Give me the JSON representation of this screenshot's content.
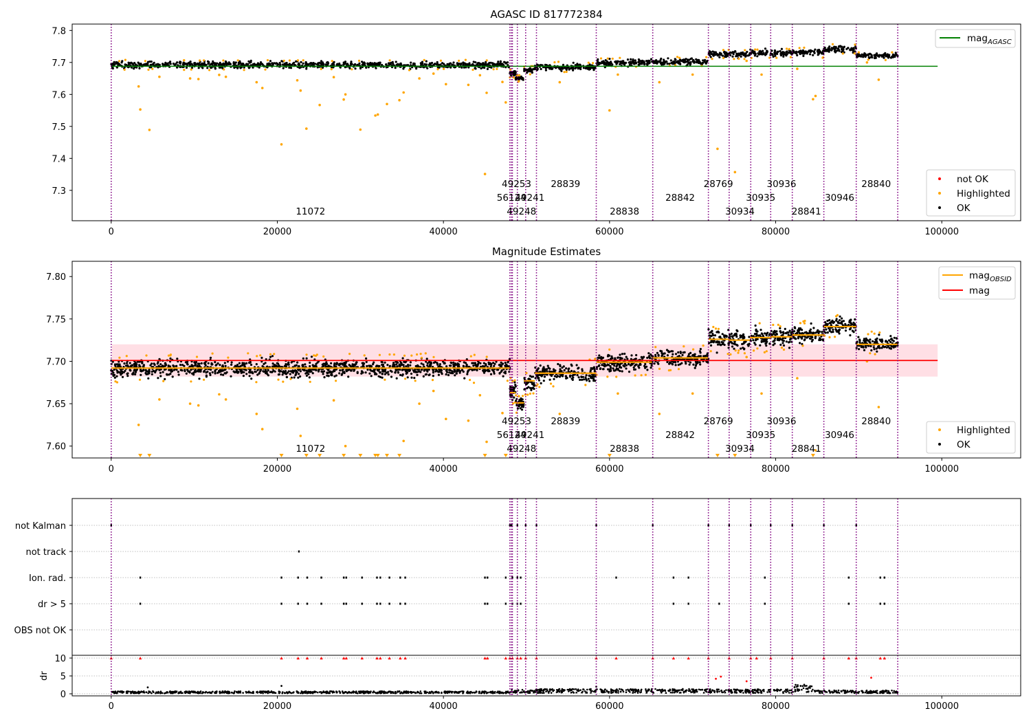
{
  "chart_data": [
    {
      "type": "scatter",
      "title": "AGASC ID 817772384",
      "xlabel": "",
      "ylabel": "",
      "xlim": [
        -4700,
        109500
      ],
      "ylim": [
        7.205,
        7.82
      ],
      "xticks": [
        0,
        20000,
        40000,
        60000,
        80000,
        100000
      ],
      "xtick_labels": [
        "0",
        "20000",
        "40000",
        "60000",
        "80000",
        "100000"
      ],
      "yticks": [
        7.3,
        7.4,
        7.5,
        7.6,
        7.7,
        7.8
      ],
      "ytick_labels": [
        "7.3",
        "7.4",
        "7.5",
        "7.6",
        "7.7",
        "7.8"
      ],
      "legends": [
        {
          "position": "upper right",
          "items": [
            {
              "label": "mag",
              "sub": "AGASC",
              "marker": "line",
              "color": "#008000"
            }
          ]
        },
        {
          "position": "lower right",
          "items": [
            {
              "label": "not OK",
              "marker": "dot",
              "color": "#ff0000"
            },
            {
              "label": "Highlighted",
              "marker": "dot",
              "color": "#ffa500"
            },
            {
              "label": "OK",
              "marker": "dot",
              "color": "#000000"
            }
          ]
        }
      ],
      "mag_agasc": 7.688,
      "series": [
        {
          "name": "OK",
          "color": "#000000",
          "segments": [
            {
              "x0": 0,
              "x1": 48000,
              "center": 7.692,
              "spread": 0.022
            },
            {
              "x0": 48000,
              "x1": 48700,
              "center": 7.665,
              "spread": 0.02
            },
            {
              "x0": 48700,
              "x1": 49700,
              "center": 7.65,
              "spread": 0.015
            },
            {
              "x0": 49700,
              "x1": 51000,
              "center": 7.675,
              "spread": 0.018
            },
            {
              "x0": 51000,
              "x1": 58400,
              "center": 7.686,
              "spread": 0.022
            },
            {
              "x0": 58400,
              "x1": 65100,
              "center": 7.699,
              "spread": 0.022
            },
            {
              "x0": 65100,
              "x1": 71900,
              "center": 7.703,
              "spread": 0.02
            },
            {
              "x0": 71900,
              "x1": 74400,
              "center": 7.726,
              "spread": 0.022
            },
            {
              "x0": 74400,
              "x1": 76900,
              "center": 7.725,
              "spread": 0.022
            },
            {
              "x0": 76900,
              "x1": 79400,
              "center": 7.728,
              "spread": 0.022
            },
            {
              "x0": 79400,
              "x1": 82000,
              "center": 7.729,
              "spread": 0.022
            },
            {
              "x0": 82000,
              "x1": 85800,
              "center": 7.731,
              "spread": 0.022
            },
            {
              "x0": 85800,
              "x1": 89700,
              "center": 7.742,
              "spread": 0.02
            },
            {
              "x0": 89700,
              "x1": 94700,
              "center": 7.721,
              "spread": 0.018
            }
          ]
        },
        {
          "name": "Highlighted",
          "color": "#ffa500",
          "points": [
            [
              3300,
              7.625
            ],
            [
              3500,
              7.553
            ],
            [
              4600,
              7.489
            ],
            [
              5800,
              7.655
            ],
            [
              9500,
              7.65
            ],
            [
              10500,
              7.648
            ],
            [
              13000,
              7.661
            ],
            [
              13800,
              7.655
            ],
            [
              17500,
              7.638
            ],
            [
              18200,
              7.62
            ],
            [
              20500,
              7.444
            ],
            [
              22400,
              7.644
            ],
            [
              22800,
              7.612
            ],
            [
              23500,
              7.493
            ],
            [
              25100,
              7.567
            ],
            [
              26800,
              7.654
            ],
            [
              28000,
              7.584
            ],
            [
              28200,
              7.6
            ],
            [
              30000,
              7.49
            ],
            [
              31800,
              7.534
            ],
            [
              32100,
              7.537
            ],
            [
              33200,
              7.57
            ],
            [
              34700,
              7.582
            ],
            [
              35200,
              7.606
            ],
            [
              37100,
              7.65
            ],
            [
              38800,
              7.665
            ],
            [
              40300,
              7.632
            ],
            [
              43000,
              7.63
            ],
            [
              44400,
              7.66
            ],
            [
              45000,
              7.351
            ],
            [
              45200,
              7.605
            ],
            [
              47100,
              7.639
            ],
            [
              47500,
              7.575
            ],
            [
              54000,
              7.638
            ],
            [
              60000,
              7.55
            ],
            [
              61000,
              7.662
            ],
            [
              66000,
              7.638
            ],
            [
              70000,
              7.662
            ],
            [
              73000,
              7.43
            ],
            [
              75100,
              7.357
            ],
            [
              76500,
              7.705
            ],
            [
              78300,
              7.662
            ],
            [
              82600,
              7.68
            ],
            [
              84500,
              7.585
            ],
            [
              84800,
              7.595
            ],
            [
              91000,
              7.7
            ],
            [
              92400,
              7.646
            ]
          ]
        }
      ],
      "obsid_boundaries": [
        0,
        48000,
        48200,
        48300,
        48900,
        49900,
        51200,
        58400,
        65200,
        71900,
        74400,
        77000,
        79400,
        82000,
        85800,
        89700,
        94700
      ],
      "obsid_labels": [
        {
          "text": "11072",
          "x": 24000,
          "row": 3
        },
        {
          "text": "49253",
          "x": 48800,
          "row": 1
        },
        {
          "text": "56124",
          "x": 48200,
          "row": 2
        },
        {
          "text": "49241",
          "x": 50400,
          "row": 2
        },
        {
          "text": "49248",
          "x": 49400,
          "row": 3
        },
        {
          "text": "28839",
          "x": 54700,
          "row": 1
        },
        {
          "text": "28838",
          "x": 61800,
          "row": 3
        },
        {
          "text": "28842",
          "x": 68500,
          "row": 2
        },
        {
          "text": "28769",
          "x": 73100,
          "row": 1
        },
        {
          "text": "30934",
          "x": 75700,
          "row": 3
        },
        {
          "text": "30935",
          "x": 78200,
          "row": 2
        },
        {
          "text": "30936",
          "x": 80700,
          "row": 1
        },
        {
          "text": "28841",
          "x": 83700,
          "row": 3
        },
        {
          "text": "30946",
          "x": 87700,
          "row": 2
        },
        {
          "text": "28840",
          "x": 92100,
          "row": 1
        }
      ]
    },
    {
      "type": "scatter",
      "title": "Magnitude Estimates",
      "xlabel": "",
      "ylabel": "",
      "xlim": [
        -4700,
        109500
      ],
      "ylim": [
        7.586,
        7.818
      ],
      "xticks": [
        0,
        20000,
        40000,
        60000,
        80000,
        100000
      ],
      "xtick_labels": [
        "0",
        "20000",
        "40000",
        "60000",
        "80000",
        "100000"
      ],
      "yticks": [
        7.6,
        7.65,
        7.7,
        7.75,
        7.8
      ],
      "ytick_labels": [
        "7.60",
        "7.65",
        "7.70",
        "7.75",
        "7.80"
      ],
      "legends": [
        {
          "position": "upper right",
          "items": [
            {
              "label": "mag",
              "sub": "OBSID",
              "marker": "line",
              "color": "#ffa500"
            },
            {
              "label": "mag",
              "marker": "line",
              "color": "#ff0000"
            }
          ]
        },
        {
          "position": "lower right",
          "items": [
            {
              "label": "Highlighted",
              "marker": "dot",
              "color": "#ffa500"
            },
            {
              "label": "OK",
              "marker": "dot",
              "color": "#000000"
            }
          ]
        }
      ],
      "mag": 7.701,
      "mag_band": [
        7.682,
        7.72
      ],
      "mag_obsid": [
        {
          "x0": 0,
          "x1": 48000,
          "value": 7.692
        },
        {
          "x0": 48000,
          "x1": 48700,
          "value": 7.663
        },
        {
          "x0": 48700,
          "x1": 49700,
          "value": 7.651
        },
        {
          "x0": 49700,
          "x1": 51000,
          "value": 7.677
        },
        {
          "x0": 51000,
          "x1": 58400,
          "value": 7.686
        },
        {
          "x0": 58400,
          "x1": 65100,
          "value": 7.699
        },
        {
          "x0": 65100,
          "x1": 71900,
          "value": 7.704
        },
        {
          "x0": 71900,
          "x1": 74400,
          "value": 7.726
        },
        {
          "x0": 74400,
          "x1": 76900,
          "value": 7.725
        },
        {
          "x0": 76900,
          "x1": 79400,
          "value": 7.728
        },
        {
          "x0": 79400,
          "x1": 82000,
          "value": 7.729
        },
        {
          "x0": 82000,
          "x1": 85800,
          "value": 7.731
        },
        {
          "x0": 85800,
          "x1": 89700,
          "value": 7.741
        },
        {
          "x0": 89700,
          "x1": 94700,
          "value": 7.72
        }
      ],
      "obsid_labels_same_as_first": true
    },
    {
      "type": "scatter",
      "title": "",
      "xlabel": "",
      "ylabel": "dr",
      "xlim": [
        -4700,
        109500
      ],
      "flag_rows": [
        "not Kalman",
        "not track",
        "Ion. rad.",
        "dr > 5",
        "OBS not OK"
      ],
      "dr_yticks": [
        0,
        5,
        10
      ],
      "dr_ytick_labels": [
        "0",
        "5",
        "10"
      ],
      "xticks": [
        0,
        20000,
        40000,
        60000,
        80000,
        100000
      ],
      "xtick_labels": [
        "0",
        "20000",
        "40000",
        "60000",
        "80000",
        "100000"
      ],
      "flag_points": {
        "not Kalman": [
          0,
          48000,
          48200,
          48900,
          49900,
          51200,
          58400,
          65200,
          71900,
          74400,
          77000,
          79400,
          82000,
          85800,
          89700
        ],
        "not track": [
          22600
        ],
        "Ion. rad.": [
          3500,
          20500,
          22500,
          23600,
          25300,
          28000,
          28300,
          30200,
          32000,
          32400,
          33500,
          34800,
          35400,
          45000,
          45300,
          47500,
          48300,
          48900,
          49300,
          60800,
          67700,
          69500,
          78700,
          88800,
          92600,
          93100
        ],
        "dr > 5": [
          3500,
          20500,
          22500,
          23600,
          25300,
          28000,
          28300,
          30200,
          32000,
          32400,
          33500,
          34800,
          35400,
          45000,
          45300,
          47500,
          48300,
          48900,
          49300,
          67700,
          69500,
          73200,
          78700,
          88800,
          92600,
          93100
        ]
      },
      "dr_capped_points": [
        0,
        3500,
        20500,
        22500,
        23600,
        25300,
        28000,
        28300,
        30200,
        32000,
        32400,
        33500,
        34800,
        35400,
        45000,
        45300,
        47500,
        48000,
        48300,
        48900,
        49300,
        49900,
        51200,
        58400,
        60800,
        65200,
        67700,
        69500,
        71900,
        74400,
        77000,
        77700,
        79400,
        82000,
        85800,
        88800,
        89700,
        92600,
        93100
      ],
      "dr_bumps": [
        {
          "x": 4400,
          "value": 1.8
        },
        {
          "x": 20500,
          "value": 2.2
        },
        {
          "x": 58400,
          "value": 2.0
        },
        {
          "x": 72800,
          "value": 4.2
        },
        {
          "x": 73400,
          "value": 4.8
        },
        {
          "x": 76500,
          "value": 3.5
        },
        {
          "x": 82400,
          "value": 2.5
        },
        {
          "x": 83000,
          "value": 2.2
        },
        {
          "x": 91500,
          "value": 4.5
        }
      ],
      "dr_baseline": [
        {
          "x0": 0,
          "x1": 48000,
          "value": 0.45
        },
        {
          "x0": 48000,
          "x1": 51000,
          "value": 0.7
        },
        {
          "x0": 51000,
          "x1": 71900,
          "value": 0.85
        },
        {
          "x0": 71900,
          "x1": 82000,
          "value": 0.8
        },
        {
          "x0": 82000,
          "x1": 84500,
          "value": 1.6
        },
        {
          "x0": 84500,
          "x1": 94700,
          "value": 0.6
        }
      ]
    }
  ]
}
